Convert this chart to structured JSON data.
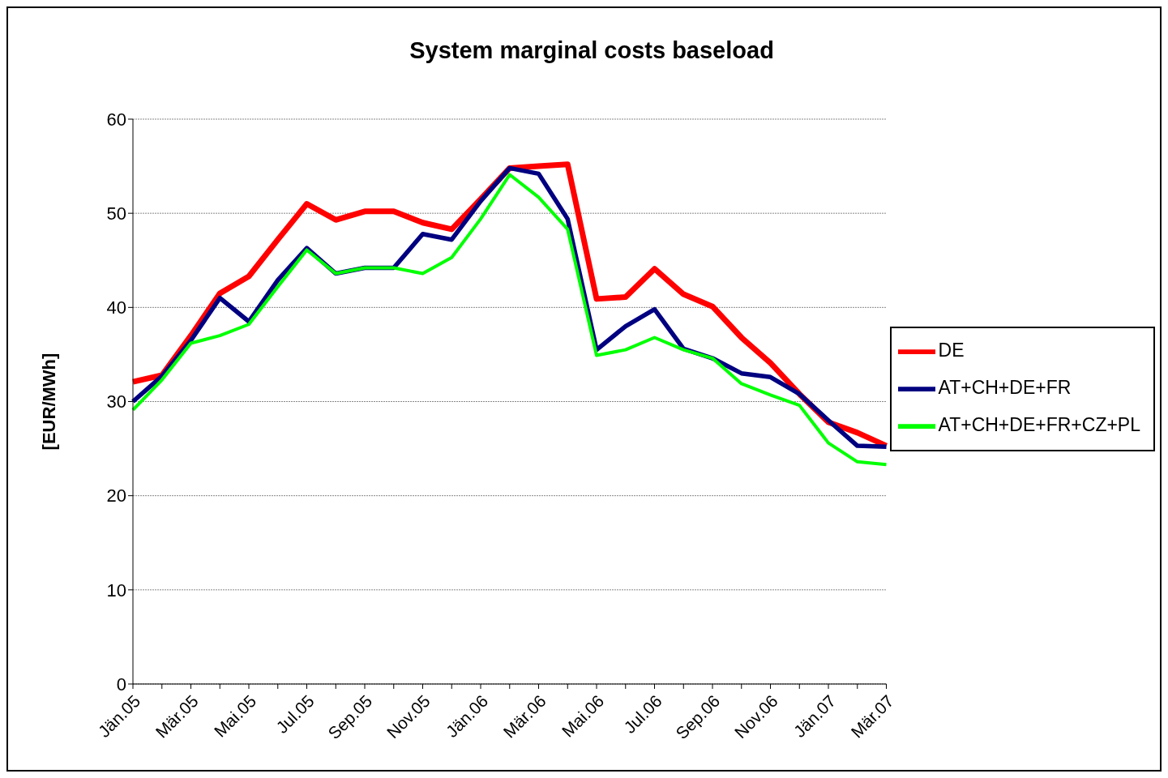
{
  "chart_data": {
    "type": "line",
    "title": "System marginal costs baseload",
    "ylabel": "[EUR/MWh]",
    "categories": [
      "Jän.05",
      null,
      "Mär.05",
      null,
      "Mai.05",
      null,
      "Jul.05",
      null,
      "Sep.05",
      null,
      "Nov.05",
      null,
      "Jän.06",
      null,
      "Mär.06",
      null,
      "Mai.06",
      null,
      "Jul.06",
      null,
      "Sep.06",
      null,
      "Nov.06",
      null,
      "Jän.07",
      null,
      "Mär.07"
    ],
    "series": [
      {
        "name": "DE",
        "color": "#ff0000",
        "values": [
          32.1,
          32.8,
          37,
          41.5,
          43.3,
          47.2,
          51.0,
          49.3,
          50.2,
          50.2,
          49.0,
          48.3,
          51.5,
          54.8,
          55.0,
          55.2,
          40.9,
          41.1,
          44.1,
          41.4,
          40.1,
          36.8,
          34.1,
          30.8,
          27.8,
          26.7,
          25.3
        ]
      },
      {
        "name": "AT+CH+DE+FR",
        "color": "#000080",
        "values": [
          30.0,
          32.7,
          36.5,
          41.0,
          38.5,
          42.9,
          46.3,
          43.6,
          44.2,
          44.2,
          47.8,
          47.2,
          51.3,
          54.8,
          54.2,
          49.4,
          35.5,
          38.0,
          39.8,
          35.6,
          34.6,
          33.0,
          32.6,
          30.8,
          28.0,
          25.3,
          25.2
        ]
      },
      {
        "name": "AT+CH+DE+FR+CZ+PL",
        "color": "#00ff00",
        "values": [
          29.1,
          32.3,
          36.2,
          37.0,
          38.2,
          42.2,
          46.1,
          43.6,
          44.2,
          44.2,
          43.6,
          45.3,
          49.4,
          54.1,
          51.7,
          48.3,
          34.9,
          35.5,
          36.8,
          35.5,
          34.6,
          31.9,
          30.7,
          29.6,
          25.6,
          23.6,
          23.3
        ]
      }
    ],
    "ylim": [
      0,
      60
    ],
    "yticks": [
      0,
      10,
      20,
      30,
      40,
      50,
      60
    ],
    "grid": "y",
    "legend": "right",
    "marker": "none",
    "line_style": "solid"
  }
}
